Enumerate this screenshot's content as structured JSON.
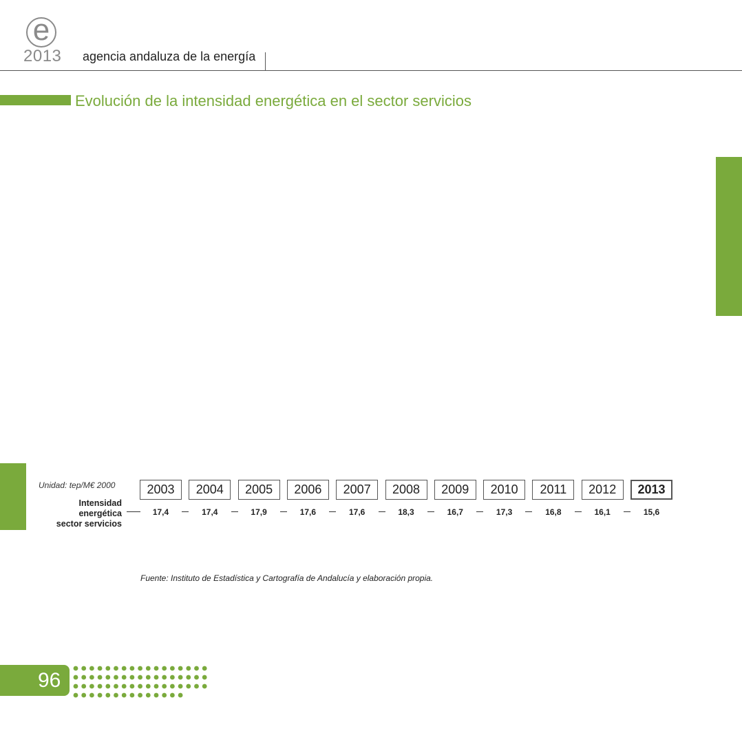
{
  "header": {
    "logo_letter": "e",
    "logo_year": "2013",
    "agency": "agencia andaluza de la energía"
  },
  "title": "Evolución de la intensidad energética en el sector servicios",
  "table": {
    "unit": "Unidad: tep/M€ 2000",
    "row_label": [
      "Intensidad",
      "energética",
      "sector servicios"
    ],
    "years": [
      "2003",
      "2004",
      "2005",
      "2006",
      "2007",
      "2008",
      "2009",
      "2010",
      "2011",
      "2012",
      "2013"
    ],
    "values": [
      "17,4",
      "17,4",
      "17,9",
      "17,6",
      "17,6",
      "18,3",
      "16,7",
      "17,3",
      "16,8",
      "16,1",
      "15,6"
    ],
    "highlighted_year": "2013"
  },
  "source": "Fuente: Instituto de Estadística y Cartografía de Andalucía y elaboración propia.",
  "footer": {
    "page_number": "96"
  },
  "colors": {
    "accent": "#7aaa3c",
    "grey": "#8a8a8a"
  }
}
